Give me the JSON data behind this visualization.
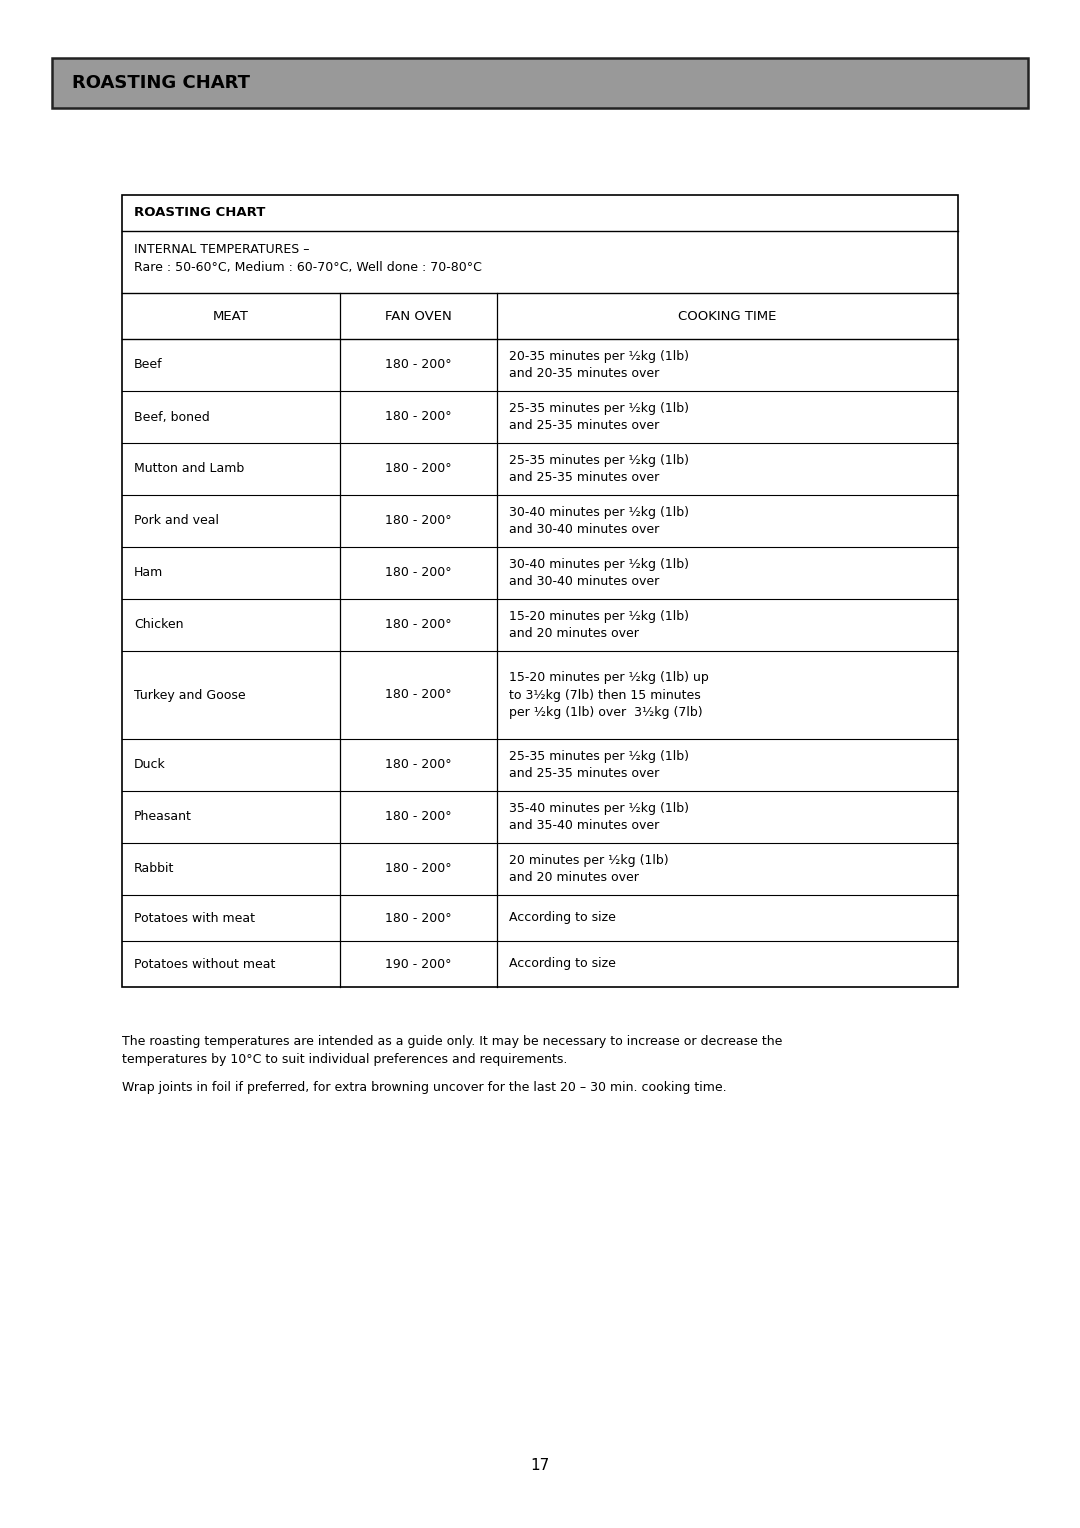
{
  "page_title": "ROASTING CHART",
  "page_title_bg": "#999999",
  "page_title_fontsize": 13,
  "table_title": "ROASTING CHART",
  "internal_temp_line1": "INTERNAL TEMPERATURES –",
  "internal_temp_line2": "Rare : 50-60°C, Medium : 60-70°C, Well done : 70-80°C",
  "col_headers": [
    "MEAT",
    "FAN OVEN",
    "COOKING TIME"
  ],
  "rows": [
    [
      "Beef",
      "180 - 200°",
      "20-35 minutes per ½kg (1lb)\nand 20-35 minutes over"
    ],
    [
      "Beef, boned",
      "180 - 200°",
      "25-35 minutes per ½kg (1lb)\nand 25-35 minutes over"
    ],
    [
      "Mutton and Lamb",
      "180 - 200°",
      "25-35 minutes per ½kg (1lb)\nand 25-35 minutes over"
    ],
    [
      "Pork and veal",
      "180 - 200°",
      "30-40 minutes per ½kg (1lb)\nand 30-40 minutes over"
    ],
    [
      "Ham",
      "180 - 200°",
      "30-40 minutes per ½kg (1lb)\nand 30-40 minutes over"
    ],
    [
      "Chicken",
      "180 - 200°",
      "15-20 minutes per ½kg (1lb)\nand 20 minutes over"
    ],
    [
      "Turkey and Goose",
      "180 - 200°",
      "15-20 minutes per ½kg (1lb) up\nto 3½kg (7lb) then 15 minutes\nper ½kg (1lb) over  3½kg (7lb)"
    ],
    [
      "Duck",
      "180 - 200°",
      "25-35 minutes per ½kg (1lb)\nand 25-35 minutes over"
    ],
    [
      "Pheasant",
      "180 - 200°",
      "35-40 minutes per ½kg (1lb)\nand 35-40 minutes over"
    ],
    [
      "Rabbit",
      "180 - 200°",
      "20 minutes per ½kg (1lb)\nand 20 minutes over"
    ],
    [
      "Potatoes with meat",
      "180 - 200°",
      "According to size"
    ],
    [
      "Potatoes without meat",
      "190 - 200°",
      "According to size"
    ]
  ],
  "footnote1_part1": "The roasting temperatures are intended as a guide only. It may be necessary to increase or decrease the",
  "footnote1_part2": "temperatures by 10°C to suit individual preferences and requirements.",
  "footnote2": "Wrap joints in foil if preferred, for extra browning uncover for the last 20 – 30 min. cooking time.",
  "page_number": "17",
  "bg_color": "#ffffff",
  "text_color": "#000000",
  "border_color": "#000000"
}
